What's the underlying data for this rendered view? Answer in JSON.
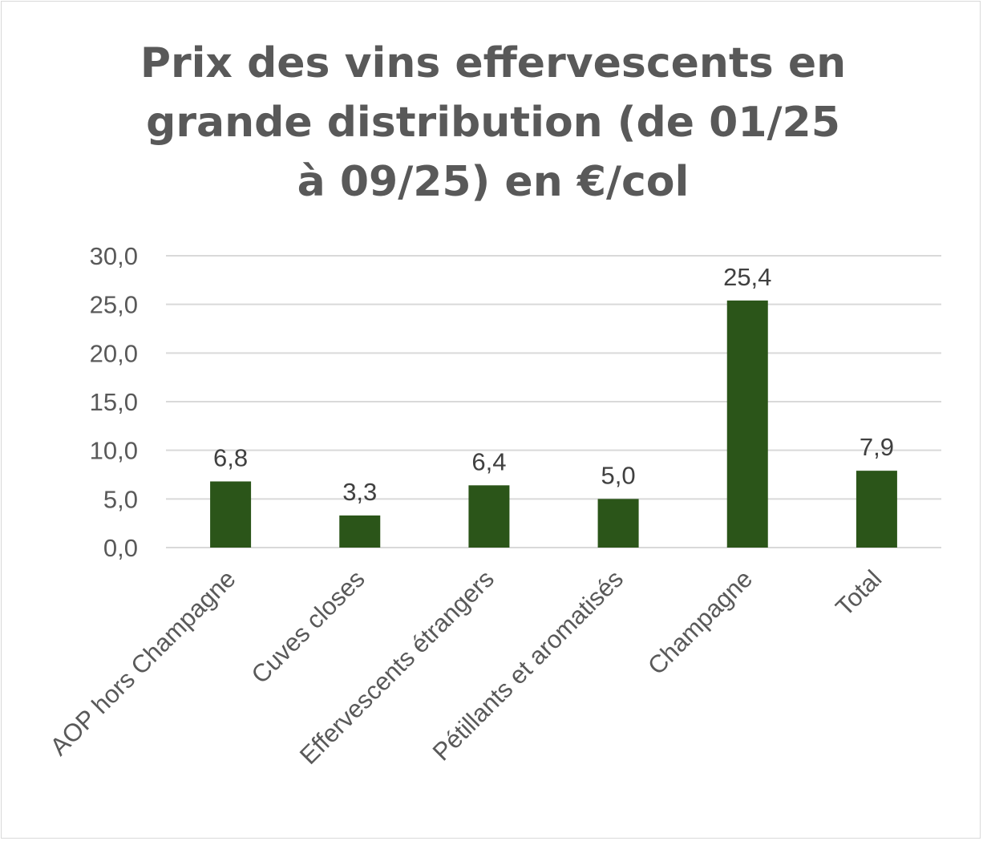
{
  "chart_data": {
    "type": "bar",
    "title_lines": [
      "Prix des vins effervescents en",
      "grande distribution (de 01/25",
      "à 09/25) en €/col"
    ],
    "categories": [
      "AOP hors Champagne",
      "Cuves closes",
      "Effervescents étrangers",
      "Pétillants et aromatisés",
      "Champagne",
      "Total"
    ],
    "values": [
      6.8,
      3.3,
      6.4,
      5.0,
      25.4,
      7.9
    ],
    "data_labels": [
      "6,8",
      "3,3",
      "6,4",
      "5,0",
      "25,4",
      "7,9"
    ],
    "y_ticks": [
      0,
      5,
      10,
      15,
      20,
      25,
      30
    ],
    "y_tick_labels": [
      "0,0",
      "5,0",
      "10,0",
      "15,0",
      "20,0",
      "25,0",
      "30,0"
    ],
    "ylim": [
      0,
      30
    ],
    "xlabel": "",
    "ylabel": "",
    "grid": true,
    "legend": "none",
    "colors": {
      "bar": "#2b5519",
      "grid": "#d9d9d9",
      "axis_text": "#595959",
      "title": "#595959",
      "data_label": "#404040"
    }
  }
}
